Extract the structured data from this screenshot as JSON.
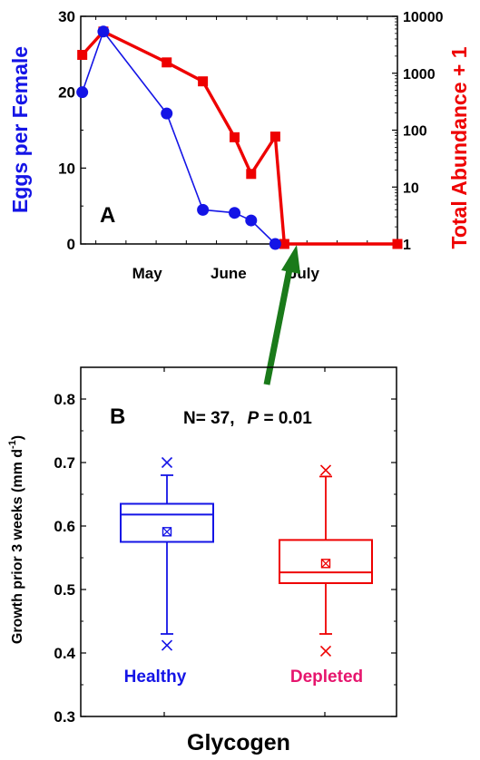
{
  "colors": {
    "eggs": "#1414e6",
    "abundance": "#ee0000",
    "healthy": "#1414e6",
    "depleted": "#ee0000",
    "depleted_label": "#e6166e",
    "arrow": "#1a7a1a"
  },
  "chart_data": [
    {
      "panel": "A",
      "type": "line",
      "left_axis": {
        "label": "Eggs per Female",
        "range": [
          0,
          30
        ],
        "ticks": [
          "0",
          "10",
          "20",
          "30"
        ]
      },
      "right_axis": {
        "label": "Total Abundance + 1",
        "scale": "log",
        "range": [
          1,
          10000
        ],
        "ticks": [
          "1",
          "10",
          "100",
          "1000",
          "10000"
        ]
      },
      "x_axis": {
        "range": [
          0,
          10.5
        ],
        "month_labels": [
          {
            "label": "May",
            "x": 2.2
          },
          {
            "label": "June",
            "x": 4.9
          },
          {
            "label": "July",
            "x": 7.4
          }
        ]
      },
      "series": [
        {
          "key": "eggs",
          "axis": "left",
          "marker": "circle",
          "x": [
            0.05,
            0.75,
            2.85,
            4.05,
            5.1,
            5.65,
            6.45
          ],
          "y": [
            20,
            28,
            17.2,
            4.5,
            4.1,
            3.1,
            0
          ]
        },
        {
          "key": "abundance",
          "axis": "right",
          "marker": "square",
          "x": [
            0.05,
            0.75,
            2.85,
            4.05,
            5.1,
            5.65,
            6.45,
            6.75,
            10.5
          ],
          "y": [
            2100,
            5400,
            1550,
            720,
            75,
            17,
            77,
            1,
            1
          ]
        }
      ]
    },
    {
      "panel": "B",
      "type": "box",
      "y_axis": {
        "label": "Growth prior 3 weeks (mm d",
        "label_superscript": "-1",
        "label_close": ")",
        "range": [
          0.3,
          0.85
        ],
        "ticks": [
          "0.3",
          "0.4",
          "0.5",
          "0.6",
          "0.7",
          "0.8"
        ]
      },
      "stat_text": {
        "n": "N= 37,",
        "p_letter": "P",
        "p_rest": " = 0.01"
      },
      "x_axis_title": "Glycogen",
      "groups": [
        {
          "key": "healthy",
          "label": "Healthy",
          "whisker_low": 0.43,
          "q1": 0.575,
          "median": 0.618,
          "q3": 0.635,
          "whisker_high": 0.68,
          "mean": 0.591,
          "min": 0.412,
          "max": 0.7
        },
        {
          "key": "depleted",
          "label": "Depleted",
          "whisker_low": 0.43,
          "q1": 0.51,
          "median": 0.527,
          "q3": 0.578,
          "whisker_high": 0.678,
          "mean": 0.541,
          "min": 0.403,
          "max": 0.688
        }
      ]
    }
  ]
}
